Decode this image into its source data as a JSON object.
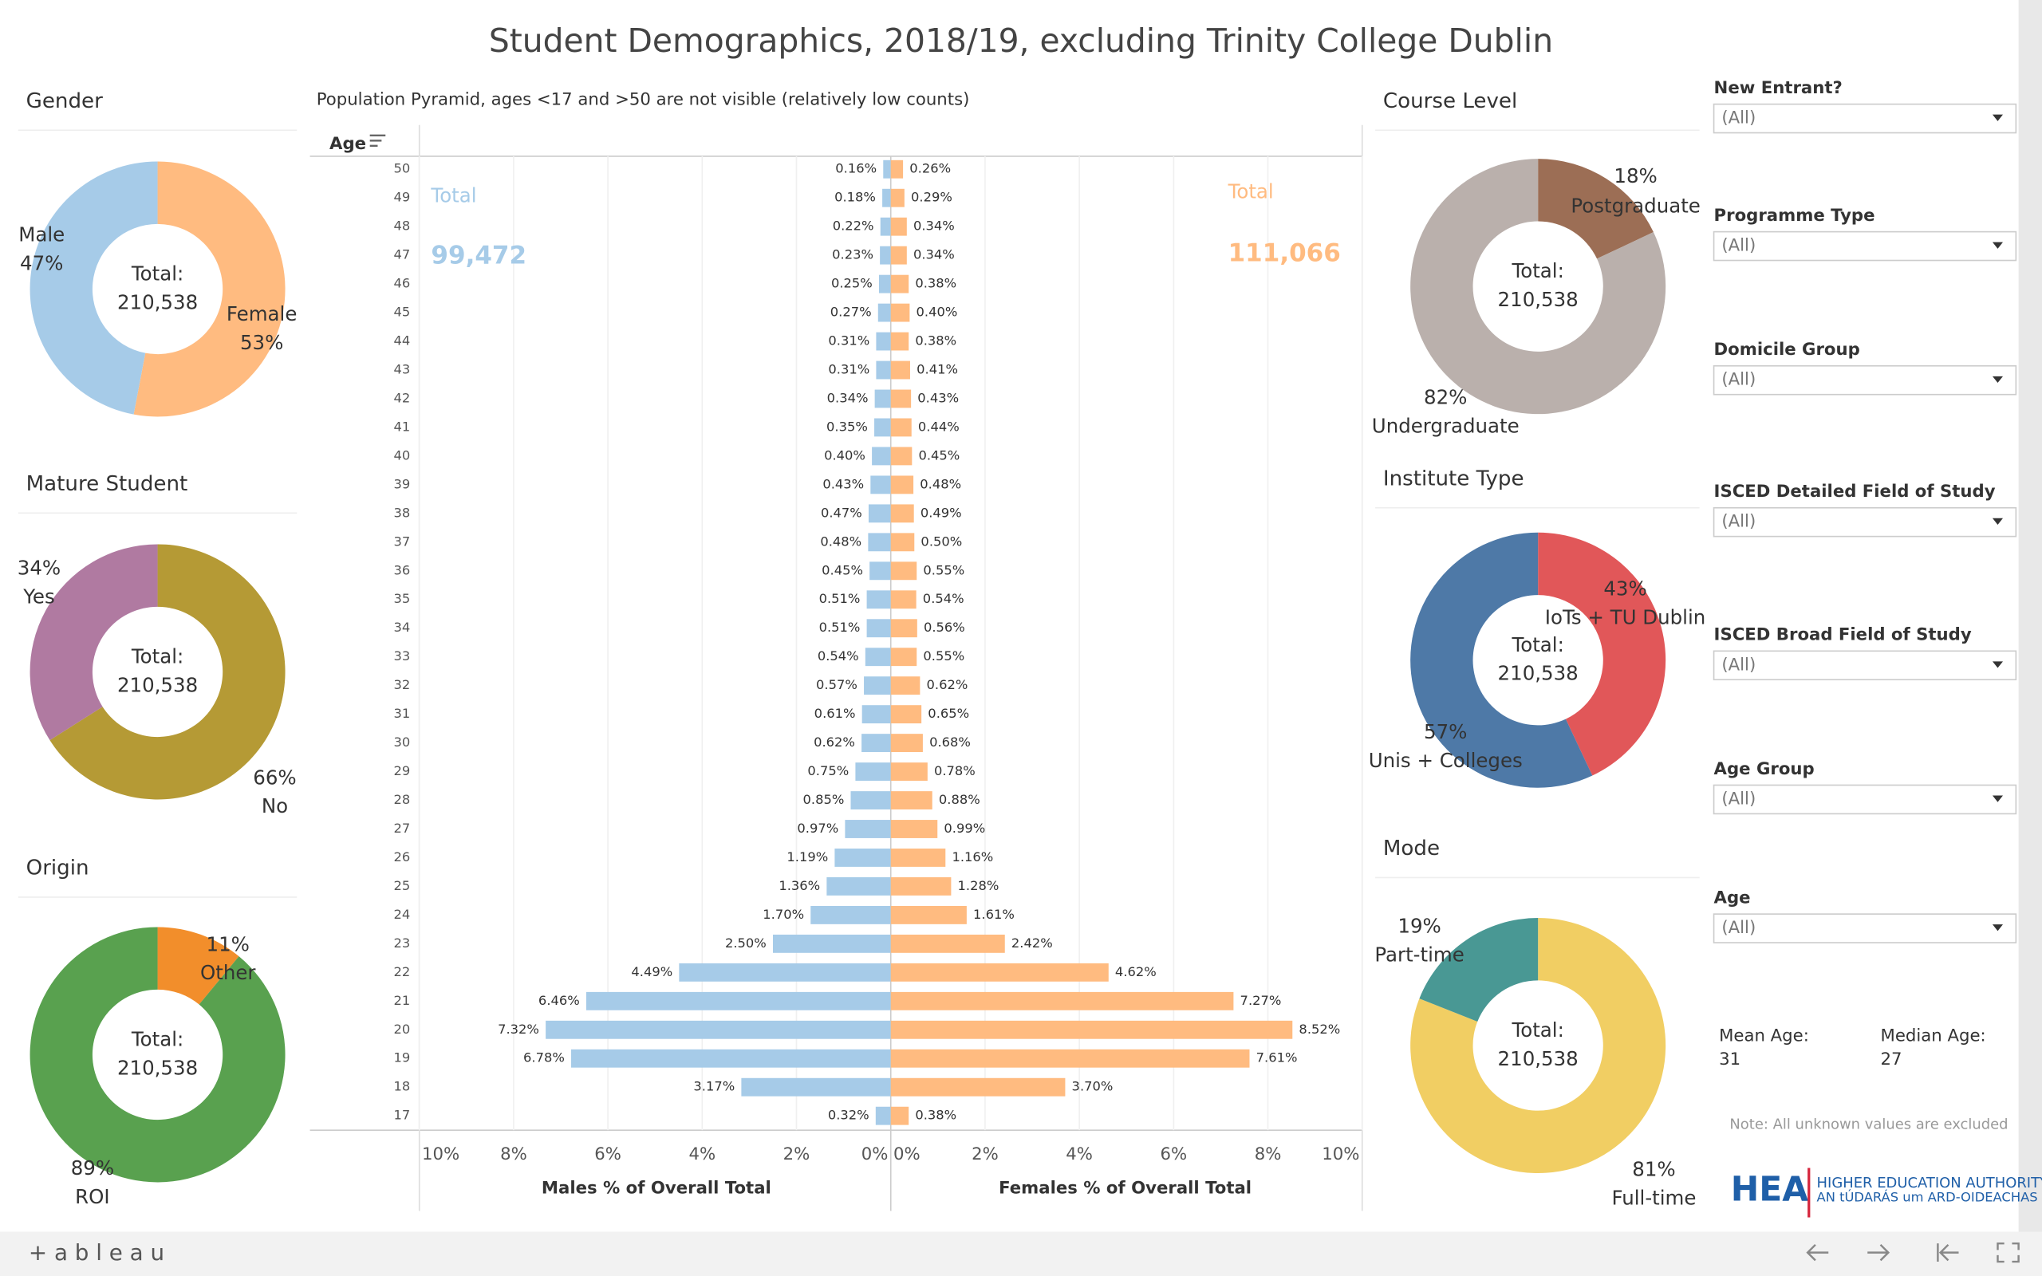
{
  "title": "Student Demographics, 2018/19, excluding Trinity College Dublin",
  "chart_data": [
    {
      "type": "donut",
      "title": "Gender",
      "center_text": [
        "Total:",
        "210,538"
      ],
      "categories": [
        "Female",
        "Male"
      ],
      "values": [
        53,
        47
      ],
      "value_labels": [
        "53%",
        "47%"
      ],
      "colors": [
        "#ffbb80",
        "#a6cbe8"
      ]
    },
    {
      "type": "donut",
      "title": "Mature Student",
      "center_text": [
        "Total:",
        "210,538"
      ],
      "categories": [
        "No",
        "Yes"
      ],
      "values": [
        66,
        34
      ],
      "value_labels": [
        "66%",
        "34%"
      ],
      "colors": [
        "#b59a35",
        "#b07aa1"
      ]
    },
    {
      "type": "donut",
      "title": "Origin",
      "center_text": [
        "Total:",
        "210,538"
      ],
      "categories": [
        "Other",
        "ROI"
      ],
      "values": [
        11,
        89
      ],
      "value_labels": [
        "11%",
        "89%"
      ],
      "colors": [
        "#f28e2b",
        "#59a14f"
      ]
    },
    {
      "type": "pyramid",
      "subtitle": "Population Pyramid, ages <17 and >50 are not visible (relatively low counts)",
      "y_label": "Age",
      "categories": [
        "50",
        "49",
        "48",
        "47",
        "46",
        "45",
        "44",
        "43",
        "42",
        "41",
        "40",
        "39",
        "38",
        "37",
        "36",
        "35",
        "34",
        "33",
        "32",
        "31",
        "30",
        "29",
        "28",
        "27",
        "26",
        "25",
        "24",
        "23",
        "22",
        "21",
        "20",
        "19",
        "18",
        "17"
      ],
      "series": [
        {
          "name": "Males % of Overall Total",
          "color": "#a6cbe8",
          "total_title": "Total",
          "total": "99,472",
          "xlim": [
            0,
            10
          ],
          "xticks": [
            {
              "value": 10,
              "label": "10%"
            },
            {
              "value": 8,
              "label": "8%"
            },
            {
              "value": 6,
              "label": "6%"
            },
            {
              "value": 4,
              "label": "4%"
            },
            {
              "value": 2,
              "label": "2%"
            },
            {
              "value": 0,
              "label": "0%"
            }
          ],
          "values": [
            0.16,
            0.18,
            0.22,
            0.23,
            0.25,
            0.27,
            0.31,
            0.31,
            0.34,
            0.35,
            0.4,
            0.43,
            0.47,
            0.48,
            0.45,
            0.51,
            0.51,
            0.54,
            0.57,
            0.61,
            0.62,
            0.75,
            0.85,
            0.97,
            1.19,
            1.36,
            1.7,
            2.5,
            4.49,
            6.46,
            7.32,
            6.78,
            3.17,
            0.32
          ],
          "value_labels": [
            "0.16%",
            "0.18%",
            "0.22%",
            "0.23%",
            "0.25%",
            "0.27%",
            "0.31%",
            "0.31%",
            "0.34%",
            "0.35%",
            "0.40%",
            "0.43%",
            "0.47%",
            "0.48%",
            "0.45%",
            "0.51%",
            "0.51%",
            "0.54%",
            "0.57%",
            "0.61%",
            "0.62%",
            "0.75%",
            "0.85%",
            "0.97%",
            "1.19%",
            "1.36%",
            "1.70%",
            "2.50%",
            "4.49%",
            "6.46%",
            "7.32%",
            "6.78%",
            "3.17%",
            "0.32%"
          ]
        },
        {
          "name": "Females % of Overall Total",
          "color": "#ffbb80",
          "total_title": "Total",
          "total": "111,066",
          "xlim": [
            0,
            10
          ],
          "xticks": [
            {
              "value": 0,
              "label": "0%"
            },
            {
              "value": 2,
              "label": "2%"
            },
            {
              "value": 4,
              "label": "4%"
            },
            {
              "value": 6,
              "label": "6%"
            },
            {
              "value": 8,
              "label": "8%"
            },
            {
              "value": 10,
              "label": "10%"
            }
          ],
          "values": [
            0.26,
            0.29,
            0.34,
            0.34,
            0.38,
            0.4,
            0.38,
            0.41,
            0.43,
            0.44,
            0.45,
            0.48,
            0.49,
            0.5,
            0.55,
            0.54,
            0.56,
            0.55,
            0.62,
            0.65,
            0.68,
            0.78,
            0.88,
            0.99,
            1.16,
            1.28,
            1.61,
            2.42,
            4.62,
            7.27,
            8.52,
            7.61,
            3.7,
            0.38
          ],
          "value_labels": [
            "0.26%",
            "0.29%",
            "0.34%",
            "0.34%",
            "0.38%",
            "0.40%",
            "0.38%",
            "0.41%",
            "0.43%",
            "0.44%",
            "0.45%",
            "0.48%",
            "0.49%",
            "0.50%",
            "0.55%",
            "0.54%",
            "0.56%",
            "0.55%",
            "0.62%",
            "0.65%",
            "0.68%",
            "0.78%",
            "0.88%",
            "0.99%",
            "1.16%",
            "1.28%",
            "1.61%",
            "2.42%",
            "4.62%",
            "7.27%",
            "8.52%",
            "7.61%",
            "3.70%",
            "0.38%"
          ]
        }
      ],
      "grid": true
    },
    {
      "type": "donut",
      "title": "Course Level",
      "center_text": [
        "Total:",
        "210,538"
      ],
      "categories": [
        "Postgraduate",
        "Undergraduate"
      ],
      "values": [
        18,
        82
      ],
      "value_labels": [
        "18%",
        "82%"
      ],
      "colors": [
        "#9c6e55",
        "#bab0ac"
      ]
    },
    {
      "type": "donut",
      "title": "Institute Type",
      "center_text": [
        "Total:",
        "210,538"
      ],
      "categories": [
        "IoTs + TU Dublin",
        "Unis + Colleges"
      ],
      "values": [
        43,
        57
      ],
      "value_labels": [
        "43%",
        "57%"
      ],
      "colors": [
        "#e15759",
        "#4e79a7"
      ]
    },
    {
      "type": "donut",
      "title": "Mode",
      "center_text": [
        "Total:",
        "210,538"
      ],
      "categories": [
        "Full-time",
        "Part-time"
      ],
      "values": [
        81,
        19
      ],
      "value_labels": [
        "81%",
        "19%"
      ],
      "colors": [
        "#f1ce63",
        "#499894"
      ]
    }
  ],
  "filters": [
    {
      "label": "New Entrant?",
      "value": "(All)"
    },
    {
      "label": "Programme Type",
      "value": "(All)"
    },
    {
      "label": "Domicile Group",
      "value": "(All)"
    },
    {
      "label": "ISCED Detailed Field of Study",
      "value": "(All)"
    },
    {
      "label": "ISCED Broad Field of Study",
      "value": "(All)"
    },
    {
      "label": "Age Group",
      "value": "(All)"
    },
    {
      "label": "Age",
      "value": "(All)"
    }
  ],
  "stats": [
    {
      "label": "Mean Age:",
      "value": 31
    },
    {
      "label": "Median Age:",
      "value": 27
    }
  ],
  "note": "Note: All unknown values are excluded",
  "logo": {
    "mark": "HEA",
    "line1": "HIGHER EDUCATION AUTHORITY",
    "line2": "AN tÚDARÁS um ARD-OIDEACHAS"
  },
  "footer": {
    "brand": "+ a b l e a u"
  }
}
